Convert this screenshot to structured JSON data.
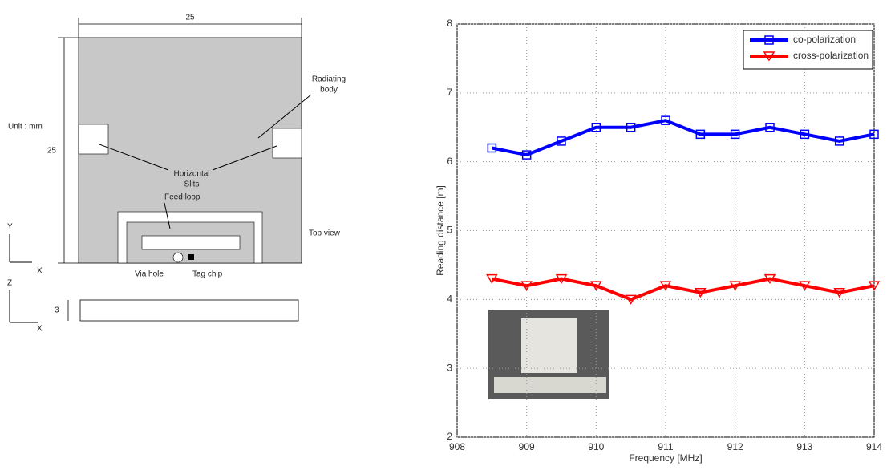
{
  "diagram": {
    "top_dimension": "25",
    "side_dimension": "25",
    "unit": "Unit : mm",
    "radiating_body": [
      "Radiating",
      "body"
    ],
    "horizontal_slits": [
      "Horizontal",
      "Slits"
    ],
    "feed_loop": "Feed loop",
    "top_view": "Top view",
    "via_hole": "Via hole",
    "tag_chip": "Tag chip",
    "top_axes": [
      "Y",
      "X"
    ],
    "side_axes": [
      "Z",
      "X"
    ],
    "thickness": "3"
  },
  "chart_data": {
    "type": "line",
    "x_label": "Frequency [MHz]",
    "y_label": "Reading distance [m]",
    "x": [
      908.5,
      909,
      909.5,
      910,
      910.5,
      911,
      911.5,
      912,
      912.5,
      913,
      913.5,
      914
    ],
    "series": [
      {
        "name": "co-polarization",
        "color": "#0000ff",
        "marker": "square",
        "values": [
          6.2,
          6.1,
          6.3,
          6.5,
          6.5,
          6.6,
          6.4,
          6.4,
          6.5,
          6.4,
          6.3,
          6.4
        ]
      },
      {
        "name": "cross-polarization",
        "color": "#ff0000",
        "marker": "triangle-down",
        "values": [
          4.3,
          4.2,
          4.3,
          4.2,
          4.0,
          4.2,
          4.1,
          4.2,
          4.3,
          4.2,
          4.1,
          4.2
        ]
      }
    ],
    "xlim": [
      908,
      914
    ],
    "xticks": [
      908,
      909,
      910,
      911,
      912,
      913,
      914
    ],
    "ylim": [
      2,
      8
    ],
    "yticks": [
      2,
      3,
      4,
      5,
      6,
      7,
      8
    ],
    "grid": true,
    "legend": "upper right"
  }
}
